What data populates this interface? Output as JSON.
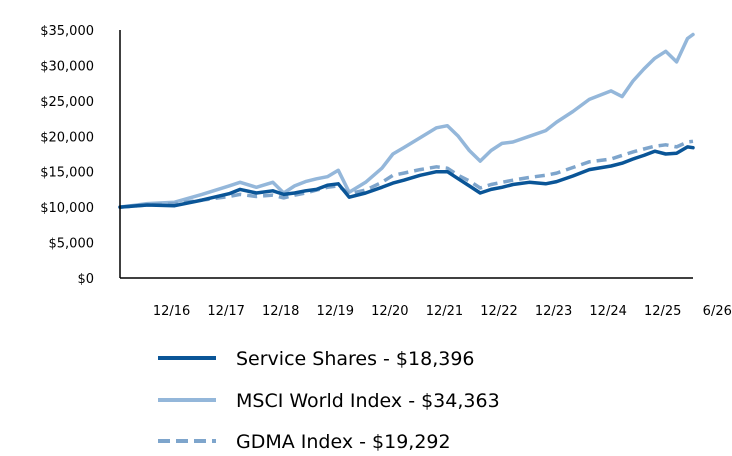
{
  "chart_data": {
    "type": "line",
    "title": "",
    "xlabel": "",
    "ylabel": "",
    "ylim": [
      0,
      35000
    ],
    "y_ticks": [
      "$0",
      "$5,000",
      "$10,000",
      "$15,000",
      "$20,000",
      "$25,000",
      "$30,000",
      "$35,000"
    ],
    "y_tick_values": [
      0,
      5000,
      10000,
      15000,
      20000,
      25000,
      30000,
      35000
    ],
    "x_range": [
      0,
      10.5
    ],
    "x_ticks": [
      "12/16",
      "12/17",
      "12/18",
      "12/19",
      "12/20",
      "12/21",
      "12/22",
      "12/23",
      "12/24",
      "12/25",
      "6/26"
    ],
    "x_tick_values": [
      1,
      2,
      3,
      4,
      5,
      6,
      7,
      8,
      9,
      10,
      11
    ],
    "grid": false,
    "legend_position": "bottom",
    "series": [
      {
        "name": "Service Shares - $18,396",
        "color": "#0a5597",
        "dash": "solid",
        "x": [
          0,
          0.5,
          1,
          1.5,
          2,
          2.2,
          2.5,
          2.8,
          3,
          3.2,
          3.4,
          3.6,
          3.8,
          4,
          4.2,
          4.5,
          4.8,
          5,
          5.2,
          5.5,
          5.8,
          6,
          6.2,
          6.4,
          6.6,
          6.8,
          7,
          7.2,
          7.5,
          7.8,
          8,
          8.3,
          8.6,
          9,
          9.2,
          9.4,
          9.6,
          9.8,
          10,
          10.2,
          10.4,
          10.5
        ],
        "values": [
          10000,
          10300,
          10200,
          11000,
          11900,
          12500,
          12000,
          12300,
          11800,
          12000,
          12300,
          12500,
          13100,
          13300,
          11400,
          12000,
          12800,
          13400,
          13800,
          14500,
          15000,
          15000,
          14000,
          13000,
          12000,
          12500,
          12800,
          13200,
          13500,
          13300,
          13600,
          14400,
          15300,
          15800,
          16200,
          16800,
          17300,
          17900,
          17500,
          17600,
          18500,
          18396
        ]
      },
      {
        "name": "MSCI World Index - $34,363",
        "color": "#94b7da",
        "dash": "solid",
        "x": [
          0,
          0.5,
          1,
          1.5,
          2,
          2.2,
          2.5,
          2.8,
          3,
          3.2,
          3.4,
          3.6,
          3.8,
          4,
          4.2,
          4.5,
          4.8,
          5,
          5.2,
          5.5,
          5.8,
          6,
          6.2,
          6.4,
          6.6,
          6.8,
          7,
          7.2,
          7.5,
          7.8,
          8,
          8.3,
          8.6,
          9,
          9.2,
          9.4,
          9.6,
          9.8,
          10,
          10.2,
          10.4,
          10.5
        ],
        "values": [
          10000,
          10500,
          10700,
          11800,
          13000,
          13500,
          12800,
          13500,
          12000,
          13000,
          13600,
          14000,
          14300,
          15200,
          12100,
          13500,
          15500,
          17500,
          18400,
          19800,
          21200,
          21500,
          20000,
          18000,
          16500,
          18000,
          19000,
          19200,
          20000,
          20800,
          22000,
          23500,
          25200,
          26400,
          25600,
          27800,
          29500,
          31000,
          32000,
          30500,
          33800,
          34363
        ]
      },
      {
        "name": "GDMA Index - $19,292",
        "color": "#7ea5cc",
        "dash": "dashed",
        "x": [
          0,
          0.5,
          1,
          1.5,
          2,
          2.2,
          2.5,
          2.8,
          3,
          3.2,
          3.4,
          3.6,
          3.8,
          4,
          4.2,
          4.5,
          4.8,
          5,
          5.2,
          5.5,
          5.8,
          6,
          6.2,
          6.4,
          6.6,
          6.8,
          7,
          7.2,
          7.5,
          7.8,
          8,
          8.3,
          8.6,
          9,
          9.2,
          9.4,
          9.6,
          9.8,
          10,
          10.2,
          10.4,
          10.5
        ],
        "values": [
          10000,
          10300,
          10500,
          11000,
          11500,
          11800,
          11500,
          11700,
          11300,
          11700,
          12000,
          12400,
          12800,
          13000,
          11900,
          12400,
          13500,
          14500,
          14800,
          15300,
          15700,
          15500,
          14500,
          13700,
          12700,
          13200,
          13500,
          13800,
          14200,
          14500,
          14800,
          15600,
          16400,
          16800,
          17300,
          17800,
          18200,
          18600,
          18800,
          18500,
          19200,
          19292
        ]
      }
    ]
  }
}
